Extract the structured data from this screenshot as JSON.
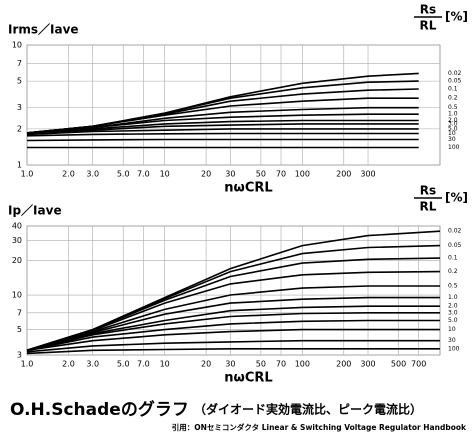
{
  "chart_data": [
    {
      "type": "line",
      "xscale": "log",
      "yscale": "log",
      "grid": true,
      "color": "#000000",
      "y_label": "Irms／Iave",
      "x_label": "nωCRL",
      "legend_title": {
        "numerator": "Rs",
        "denominator": "RL",
        "unit": "[%]"
      },
      "xlim": [
        1,
        1000
      ],
      "ylim": [
        1,
        10
      ],
      "xticks": [
        {
          "value": 1,
          "label": "1.0"
        },
        {
          "value": 2,
          "label": "2.0"
        },
        {
          "value": 3,
          "label": "3.0"
        },
        {
          "value": 5,
          "label": "5.0"
        },
        {
          "value": 7,
          "label": "7.0"
        },
        10,
        20,
        30,
        50,
        70,
        100,
        200,
        300
      ],
      "yticks": [
        1,
        2,
        3,
        5,
        7,
        10
      ],
      "x": [
        1,
        3,
        10,
        30,
        100,
        300,
        700
      ],
      "series": [
        {
          "name": "0.02",
          "values": [
            1.85,
            2.1,
            2.7,
            3.7,
            4.8,
            5.5,
            5.8
          ]
        },
        {
          "name": "0.05",
          "values": [
            1.85,
            2.1,
            2.7,
            3.6,
            4.4,
            4.9,
            5.0
          ]
        },
        {
          "name": "0.1",
          "values": [
            1.85,
            2.1,
            2.65,
            3.4,
            3.9,
            4.2,
            4.3
          ]
        },
        {
          "name": "0.2",
          "values": [
            1.85,
            2.1,
            2.6,
            3.1,
            3.4,
            3.6,
            3.6
          ]
        },
        {
          "name": "0.5",
          "values": [
            1.85,
            2.05,
            2.45,
            2.75,
            2.9,
            3.0,
            3.0
          ]
        },
        {
          "name": "1.0",
          "values": [
            1.85,
            2.05,
            2.35,
            2.5,
            2.6,
            2.65,
            2.65
          ]
        },
        {
          "name": "2.0",
          "values": [
            1.85,
            2.0,
            2.2,
            2.3,
            2.35,
            2.35,
            2.35
          ]
        },
        {
          "name": "3.0",
          "values": [
            1.85,
            1.95,
            2.1,
            2.15,
            2.2,
            2.2,
            2.2
          ]
        },
        {
          "name": "5.0",
          "values": [
            1.8,
            1.9,
            1.95,
            2.0,
            2.0,
            2.0,
            2.0
          ]
        },
        {
          "name": "10",
          "values": [
            1.75,
            1.8,
            1.82,
            1.83,
            1.83,
            1.83,
            1.83
          ]
        },
        {
          "name": "30",
          "values": [
            1.6,
            1.62,
            1.63,
            1.63,
            1.63,
            1.63,
            1.63
          ]
        },
        {
          "name": "100",
          "values": [
            1.4,
            1.4,
            1.4,
            1.4,
            1.4,
            1.4,
            1.4
          ]
        }
      ]
    },
    {
      "type": "line",
      "xscale": "log",
      "yscale": "log",
      "grid": true,
      "color": "#000000",
      "y_label": "Ip／Iave",
      "x_label": "nωCRL",
      "legend_title": {
        "numerator": "Rs",
        "denominator": "RL",
        "unit": "[%]"
      },
      "xlim": [
        1,
        1000
      ],
      "ylim": [
        3,
        40
      ],
      "xticks": [
        {
          "value": 1,
          "label": "1.0"
        },
        {
          "value": 2,
          "label": "2.0"
        },
        {
          "value": 3,
          "label": "3.0"
        },
        {
          "value": 5,
          "label": "5.0"
        },
        {
          "value": 7,
          "label": "7.0"
        },
        10,
        20,
        30,
        50,
        70,
        100,
        200,
        300,
        500,
        700
      ],
      "yticks": [
        3,
        5,
        7,
        10,
        20,
        30,
        40
      ],
      "x": [
        1,
        3,
        10,
        30,
        100,
        300,
        1000
      ],
      "series": [
        {
          "name": "0.02",
          "values": [
            3.3,
            5.0,
            9.5,
            17,
            27,
            33,
            36
          ]
        },
        {
          "name": "0.05",
          "values": [
            3.3,
            5.0,
            9.3,
            16,
            23,
            26,
            27
          ]
        },
        {
          "name": "0.1",
          "values": [
            3.3,
            5.0,
            9.0,
            14.5,
            19,
            20.5,
            21
          ]
        },
        {
          "name": "0.2",
          "values": [
            3.3,
            4.9,
            8.5,
            12.5,
            15,
            15.8,
            16
          ]
        },
        {
          "name": "0.5",
          "values": [
            3.3,
            4.8,
            7.5,
            10,
            11.5,
            12,
            12
          ]
        },
        {
          "name": "1.0",
          "values": [
            3.3,
            4.7,
            6.8,
            8.5,
            9.2,
            9.5,
            9.5
          ]
        },
        {
          "name": "2.0",
          "values": [
            3.3,
            4.6,
            6.0,
            7.3,
            7.8,
            8.0,
            8.0
          ]
        },
        {
          "name": "3.0",
          "values": [
            3.3,
            4.5,
            5.6,
            6.5,
            6.9,
            7.0,
            7.0
          ]
        },
        {
          "name": "5.0",
          "values": [
            3.3,
            4.3,
            5.0,
            5.6,
            5.9,
            6.0,
            6.0
          ]
        },
        {
          "name": "10",
          "values": [
            3.3,
            4.0,
            4.5,
            4.8,
            5.0,
            5.0,
            5.0
          ]
        },
        {
          "name": "30",
          "values": [
            3.2,
            3.6,
            3.8,
            3.9,
            4.0,
            4.0,
            4.0
          ]
        },
        {
          "name": "100",
          "values": [
            3.1,
            3.3,
            3.35,
            3.4,
            3.4,
            3.4,
            3.4
          ]
        }
      ]
    }
  ],
  "footer": {
    "title": "O.H.Schadeのグラフ",
    "subtitle": "（ダイオード実効電流比、ピーク電流比）",
    "credit": "引用：ONセミコンダクタ Linear & Switching Voltage Regulator Handbook"
  }
}
